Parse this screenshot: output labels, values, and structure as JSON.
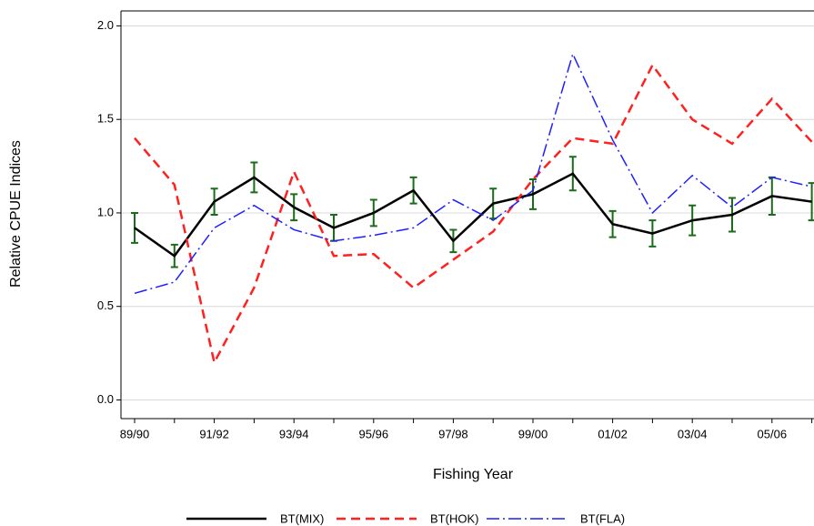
{
  "chart_data": {
    "type": "line",
    "x_label": "Fishing Year",
    "y_label": "Relative CPUE Indices",
    "categories": [
      "89/90",
      null,
      "91/92",
      null,
      "93/94",
      null,
      "95/96",
      null,
      "97/98",
      null,
      "99/00",
      null,
      "01/02",
      null,
      "03/04",
      null,
      "05/06",
      null
    ],
    "series": [
      {
        "name": "BT(MIX)",
        "color": "#000000",
        "error_color": "#1a6b1a",
        "values": [
          0.92,
          0.77,
          1.06,
          1.19,
          1.03,
          0.92,
          1.0,
          1.12,
          0.85,
          1.05,
          1.1,
          1.21,
          0.94,
          0.89,
          0.96,
          0.99,
          1.09,
          1.06
        ],
        "errors": [
          0.08,
          0.06,
          0.07,
          0.08,
          0.07,
          0.07,
          0.07,
          0.07,
          0.06,
          0.08,
          0.08,
          0.09,
          0.07,
          0.07,
          0.08,
          0.09,
          0.1,
          0.1
        ]
      },
      {
        "name": "BT(HOK)",
        "color": "#ff2020",
        "values": [
          1.4,
          1.15,
          0.2,
          0.6,
          1.22,
          0.77,
          0.78,
          0.6,
          0.75,
          0.9,
          1.18,
          1.4,
          1.37,
          1.79,
          1.5,
          1.37,
          1.61,
          1.38
        ]
      },
      {
        "name": "BT(FLA)",
        "color": "#1f1fff",
        "values": [
          0.57,
          0.63,
          0.92,
          1.04,
          0.91,
          0.85,
          0.88,
          0.92,
          1.07,
          0.96,
          1.12,
          1.85,
          1.39,
          1.0,
          1.2,
          1.03,
          1.19,
          1.14
        ]
      }
    ],
    "ylim": [
      -0.1,
      2.08
    ],
    "yticks": [
      {
        "value": 0,
        "label": "0.0"
      },
      {
        "value": 0.5,
        "label": "0.5"
      },
      {
        "value": 1,
        "label": "1.0"
      },
      {
        "value": 1.5,
        "label": "1.5"
      },
      {
        "value": 2,
        "label": "2.0"
      }
    ],
    "grid": true
  }
}
